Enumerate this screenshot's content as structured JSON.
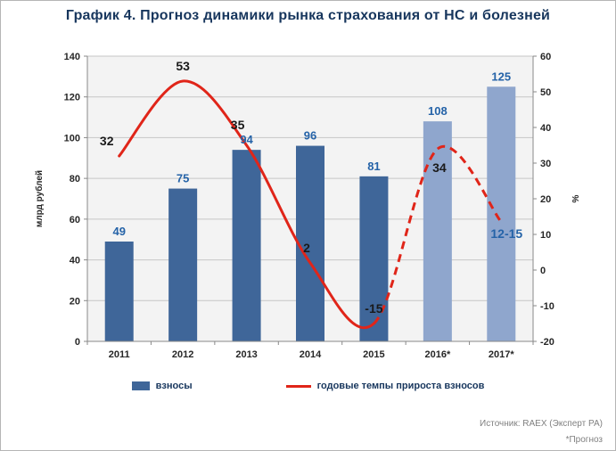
{
  "chart_data": {
    "type": "bar+line",
    "title": "График 4. Прогноз динамики рынка страхования от НС и болезней",
    "categories": [
      "2011",
      "2012",
      "2013",
      "2014",
      "2015",
      "2016*",
      "2017*"
    ],
    "bar_series": {
      "name": "взносы",
      "axis": "left",
      "unit": "млрд рублей",
      "values": [
        49,
        75,
        94,
        96,
        81,
        108,
        125
      ],
      "labels": [
        "49",
        "75",
        "94",
        "96",
        "81",
        "108",
        "125"
      ],
      "forecast_from_index": 5
    },
    "line_series": {
      "name": "годовые темпы прироста взносов",
      "axis": "right",
      "unit": "%",
      "values": [
        32,
        53,
        35,
        2,
        -15,
        34,
        13.5
      ],
      "labels": [
        "32",
        "53",
        "35",
        "2",
        "-15",
        "34",
        "12-15"
      ],
      "label_colors": [
        "#1a1a1a",
        "#1a1a1a",
        "#1a1a1a",
        "#1a1a1a",
        "#1a1a1a",
        "#1a1a1a",
        "#2563a8"
      ],
      "solid_until_index": 4,
      "dashed_from_index": 4
    },
    "left_axis": {
      "label": "млрд рублей",
      "min": 0,
      "max": 140,
      "step": 20,
      "ticks": [
        "0",
        "20",
        "40",
        "60",
        "80",
        "100",
        "120",
        "140"
      ]
    },
    "right_axis": {
      "label": "%",
      "min": -20,
      "max": 60,
      "step": 10,
      "ticks": [
        "-20",
        "-10",
        "0",
        "10",
        "20",
        "30",
        "40",
        "50",
        "60"
      ]
    },
    "grid": true,
    "legend_position": "bottom"
  },
  "legend": {
    "bar_label": "взносы",
    "line_label": "годовые темпы прироста взносов"
  },
  "footer": {
    "source": "Источник: RAEX (Эксперт РА)",
    "note": "*Прогноз"
  },
  "colors": {
    "title": "#17365d",
    "bar": "#3f6699",
    "bar_forecast": "#8fa6cd",
    "bar_label": "#2563a8",
    "line": "#e02519",
    "plot_bg": "#f3f3f3",
    "grid": "#c6c6c6",
    "axis": "#898989",
    "tick_label": "#262626",
    "legend_text": "#17365d",
    "footer_text": "#808080"
  }
}
